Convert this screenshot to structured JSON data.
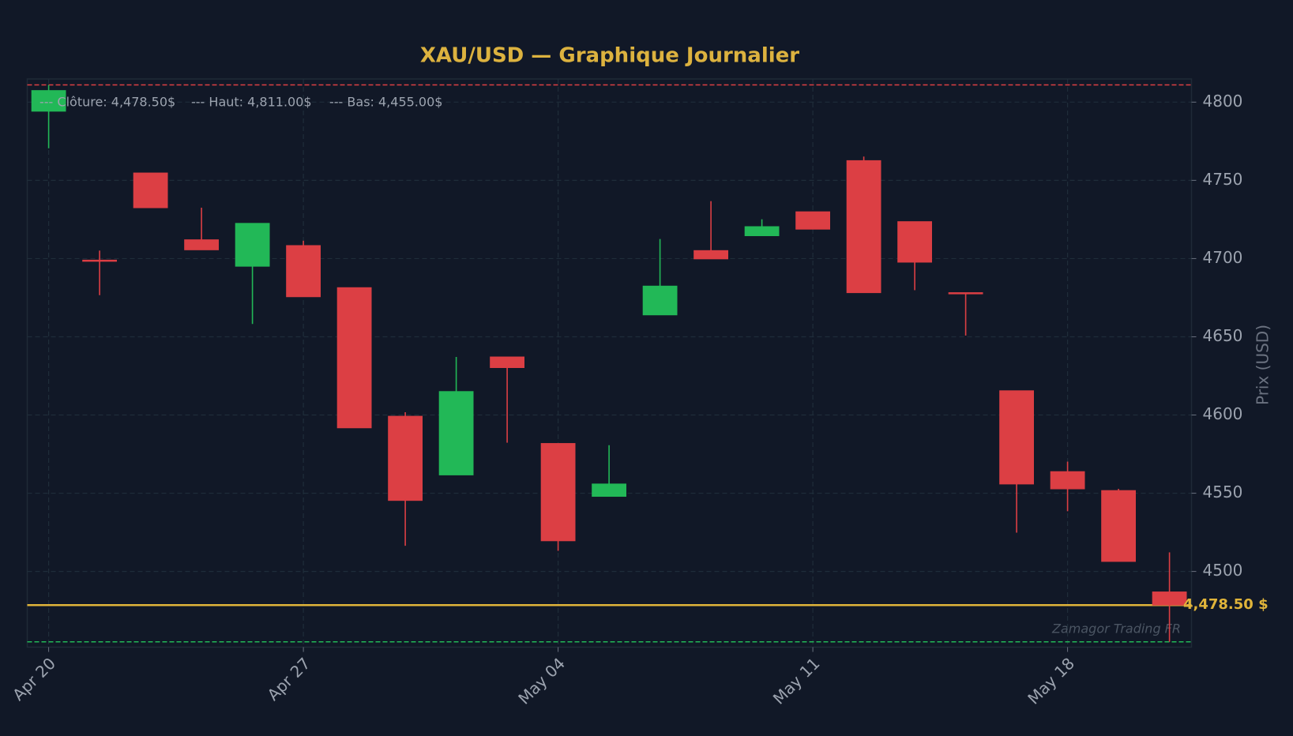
{
  "chart_data": {
    "type": "candlestick",
    "title": "XAU/USD — Graphique Journalier",
    "y_label": "Prix (USD)",
    "watermark": "Zamagor Trading FR",
    "categories": [
      "Apr 20",
      null,
      null,
      null,
      null,
      "Apr 27",
      null,
      null,
      null,
      null,
      "May 04",
      null,
      null,
      null,
      null,
      "May 11",
      null,
      null,
      null,
      null,
      "May 18",
      null,
      null
    ],
    "open": [
      4794.2,
      4699.0,
      4754.7,
      4712.0,
      4695.1,
      4708.3,
      4681.4,
      4599.2,
      4561.7,
      4637.1,
      4581.8,
      4548.0,
      4664.0,
      4705.1,
      4714.6,
      4729.9,
      4762.6,
      4723.6,
      4678.2,
      4615.5,
      4563.8,
      4551.7,
      4486.9
    ],
    "high": [
      4811.0,
      4705.1,
      4754.7,
      4732.5,
      4722.5,
      4711.4,
      4681.4,
      4601.8,
      4637.1,
      4637.1,
      4581.8,
      4580.7,
      4712.5,
      4736.7,
      4725.1,
      4729.9,
      4765.2,
      4723.6,
      4678.2,
      4615.5,
      4570.2,
      4552.8,
      4512.2
    ],
    "low": [
      4770.5,
      4676.6,
      4732.5,
      4705.6,
      4658.2,
      4675.6,
      4591.8,
      4516.4,
      4561.7,
      4582.3,
      4513.2,
      4548.0,
      4664.0,
      4699.8,
      4714.6,
      4718.8,
      4678.2,
      4679.8,
      4650.8,
      4524.8,
      4538.5,
      4506.4,
      4455.0
    ],
    "close": [
      4807.4,
      4698.5,
      4732.5,
      4705.6,
      4722.5,
      4675.6,
      4591.8,
      4545.4,
      4615.0,
      4630.3,
      4519.6,
      4555.9,
      4682.4,
      4699.8,
      4720.4,
      4718.8,
      4678.2,
      4697.7,
      4677.8,
      4555.9,
      4552.8,
      4506.4,
      4478.5
    ],
    "up_color": "#22b857",
    "down_color": "#dc3f44",
    "ylim": [
      4451.6,
      4814.8
    ],
    "yticks": [
      4500,
      4550,
      4600,
      4650,
      4700,
      4750,
      4800
    ],
    "grid": true,
    "hlines": [
      {
        "value": 4811,
        "color": "#dc3f44",
        "dashed": true
      },
      {
        "value": 4455,
        "color": "#22b857",
        "dashed": true
      },
      {
        "value": 4478.5,
        "color": "#e0b43a",
        "dashed": false,
        "label": "4,478.50 $"
      }
    ],
    "legend": [
      "--- Clôture: 4,478.50$",
      "--- Haut: 4,811.00$",
      "--- Bas: 4,455.00$"
    ]
  }
}
